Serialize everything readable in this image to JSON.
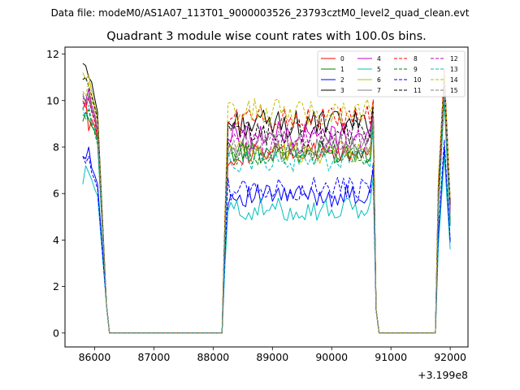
{
  "figure": {
    "suptitle": "Data file: modeM0/AS1A07_113T01_9000003526_23793cztM0_level2_quad_clean.evt",
    "title": "Quadrant 3 module wise count rates with 100.0s bins.",
    "x_offset_label": "+3.199e8"
  },
  "chart_data": {
    "type": "line",
    "title": "Quadrant 3 module wise count rates with 100.0s bins.",
    "xlabel": "",
    "ylabel": "",
    "x_offset": "+3.199e8",
    "xlim": [
      85500,
      92300
    ],
    "ylim": [
      -0.6,
      12.3
    ],
    "xticks": [
      86000,
      87000,
      88000,
      89000,
      90000,
      91000,
      92000
    ],
    "xtick_labels": [
      "86000",
      "87000",
      "88000",
      "89000",
      "90000",
      "91000",
      "92000"
    ],
    "yticks": [
      0,
      2,
      4,
      6,
      8,
      10,
      12
    ],
    "ytick_labels": [
      "0",
      "2",
      "4",
      "6",
      "8",
      "10",
      "12"
    ],
    "grid": false,
    "legend_location": "top-right",
    "legend_columns": 4,
    "segments": [
      {
        "x_start": 85800,
        "x_end": 86100,
        "step": 50
      },
      {
        "x_start": 88250,
        "x_end": 90650,
        "step": 50
      },
      {
        "x_start": 91900,
        "x_end": 91900,
        "step": 50
      }
    ],
    "gaps": [
      {
        "x_drop": 86200,
        "x_zero_start": 86250,
        "x_zero_end": 88150
      },
      {
        "x_drop": 90750,
        "x_zero_start": 90800,
        "x_zero_end": 91750
      }
    ],
    "x_end": 92000,
    "series": [
      {
        "name": "0",
        "color": "#ff0000",
        "dash": "solid",
        "start": [
          9.6,
          10.0,
          8.7,
          9.2,
          8.9,
          8.4
        ],
        "high": 7.7,
        "spike": 10.6,
        "end": 4.8
      },
      {
        "name": "1",
        "color": "#008000",
        "dash": "solid",
        "start": [
          9.1,
          9.5,
          9.2,
          8.9,
          8.7,
          8.3
        ],
        "high": 7.8,
        "spike": 10.0,
        "end": 4.7
      },
      {
        "name": "2",
        "color": "#0000ff",
        "dash": "solid",
        "start": [
          7.6,
          7.5,
          8.0,
          7.1,
          6.8,
          6.4
        ],
        "high": 5.9,
        "spike": 8.0,
        "end": 3.9
      },
      {
        "name": "3",
        "color": "#000000",
        "dash": "solid",
        "start": [
          11.6,
          11.5,
          11.0,
          10.8,
          10.1,
          9.5
        ],
        "high": 9.0,
        "spike": 11.3,
        "end": 5.6
      },
      {
        "name": "4",
        "color": "#c000c0",
        "dash": "solid",
        "start": [
          10.1,
          10.0,
          10.5,
          9.8,
          9.4,
          8.8
        ],
        "high": 8.5,
        "spike": 10.8,
        "end": 5.3
      },
      {
        "name": "5",
        "color": "#00bfbf",
        "dash": "solid",
        "start": [
          6.4,
          7.2,
          6.9,
          6.6,
          6.2,
          5.9
        ],
        "high": 5.3,
        "spike": 7.6,
        "end": 3.6
      },
      {
        "name": "6",
        "color": "#bfbf00",
        "dash": "solid",
        "start": [
          11.2,
          10.9,
          11.1,
          10.4,
          9.8,
          9.3
        ],
        "high": 7.8,
        "spike": 10.9,
        "end": 5.0
      },
      {
        "name": "7",
        "color": "#808080",
        "dash": "solid",
        "start": [
          10.3,
          9.9,
          10.2,
          9.6,
          9.2,
          8.6
        ],
        "high": 7.9,
        "spike": 10.4,
        "end": 4.9
      },
      {
        "name": "8",
        "color": "#ff0000",
        "dash": "dashed",
        "start": [
          10.0,
          9.7,
          10.1,
          9.5,
          9.1,
          8.5
        ],
        "high": 9.2,
        "spike": 11.4,
        "end": 5.7
      },
      {
        "name": "9",
        "color": "#008000",
        "dash": "dashed",
        "start": [
          9.4,
          9.3,
          9.6,
          9.0,
          8.6,
          8.1
        ],
        "high": 7.7,
        "spike": 10.2,
        "end": 4.8
      },
      {
        "name": "10",
        "color": "#0000ff",
        "dash": "dashed",
        "start": [
          7.6,
          7.3,
          7.6,
          6.9,
          6.6,
          6.2
        ],
        "high": 6.2,
        "spike": 8.3,
        "end": 4.0
      },
      {
        "name": "11",
        "color": "#000000",
        "dash": "dashed",
        "start": [
          10.9,
          11.0,
          10.6,
          10.2,
          9.7,
          9.2
        ],
        "high": 8.6,
        "spike": 11.0,
        "end": 5.4
      },
      {
        "name": "12",
        "color": "#c000c0",
        "dash": "dashed",
        "start": [
          9.9,
          9.8,
          10.1,
          9.6,
          9.2,
          8.7
        ],
        "high": 8.2,
        "spike": 10.6,
        "end": 5.2
      },
      {
        "name": "13",
        "color": "#00bfbf",
        "dash": "dashed",
        "start": [
          9.7,
          9.2,
          9.8,
          9.1,
          8.8,
          8.2
        ],
        "high": 7.4,
        "spike": 10.1,
        "end": 4.6
      },
      {
        "name": "14",
        "color": "#bfbf00",
        "dash": "dashed",
        "start": [
          10.4,
          10.2,
          10.8,
          10.0,
          9.6,
          9.0
        ],
        "high": 9.5,
        "spike": 11.2,
        "end": 5.8
      },
      {
        "name": "15",
        "color": "#808080",
        "dash": "dashed",
        "start": [
          10.2,
          9.9,
          10.3,
          9.7,
          9.3,
          8.8
        ],
        "high": 8.1,
        "spike": 10.5,
        "end": 5.1
      }
    ]
  }
}
